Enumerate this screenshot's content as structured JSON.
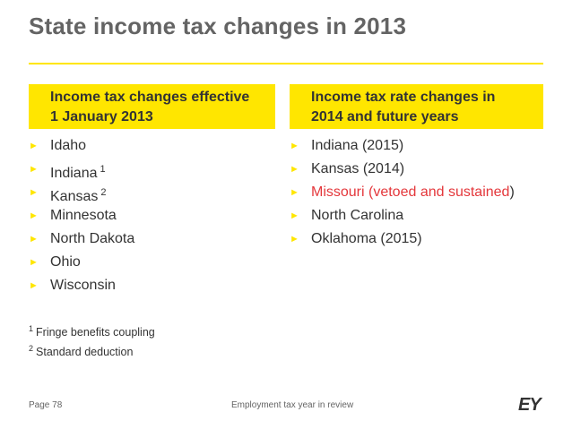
{
  "title": "State income tax changes in 2013",
  "left_column": {
    "header_line1": "Income tax changes effective",
    "header_line2": "1 January 2013",
    "items": [
      {
        "label": "Idaho",
        "sup": ""
      },
      {
        "label": "Indiana",
        "sup": "1"
      },
      {
        "label": "Kansas",
        "sup": "2"
      },
      {
        "label": "Minnesota",
        "sup": ""
      },
      {
        "label": "North Dakota",
        "sup": ""
      },
      {
        "label": "Ohio",
        "sup": ""
      },
      {
        "label": "Wisconsin",
        "sup": ""
      }
    ]
  },
  "right_column": {
    "header_line1": "Income tax rate changes in",
    "header_line2": "2014 and future years",
    "items": [
      {
        "label": "Indiana (2015)"
      },
      {
        "label": "Kansas (2014)"
      },
      {
        "label": "Missouri (vetoed and sustained)",
        "label_main": "Missouri (vetoed and sustained",
        "label_tail": ")",
        "highlight": true
      },
      {
        "label": "North Carolina"
      },
      {
        "label": "Oklahoma (2015)"
      }
    ]
  },
  "footnotes": [
    {
      "mark": "1",
      "text": "Fringe benefits coupling"
    },
    {
      "mark": "2",
      "text": "Standard deduction"
    }
  ],
  "footer": {
    "page": "Page 78",
    "text": "Employment tax year in review",
    "logo": "EY"
  },
  "bullet_glyph": "►",
  "colors": {
    "accent_yellow": "#FFE600",
    "highlight_red": "#E4373B",
    "title_gray": "#646464"
  }
}
